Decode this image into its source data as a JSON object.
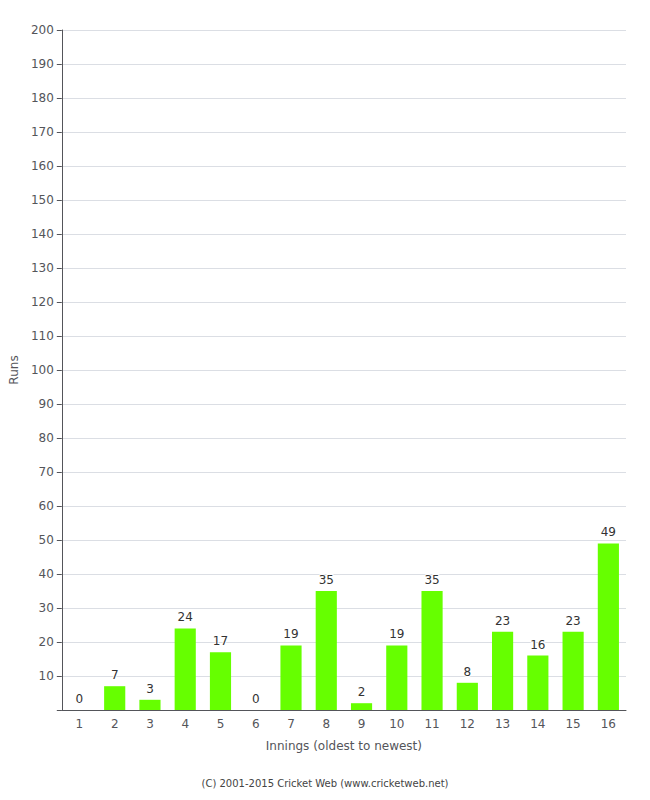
{
  "chart_data": {
    "type": "bar",
    "categories": [
      "1",
      "2",
      "3",
      "4",
      "5",
      "6",
      "7",
      "8",
      "9",
      "10",
      "11",
      "12",
      "13",
      "14",
      "15",
      "16"
    ],
    "values": [
      0,
      7,
      3,
      24,
      17,
      0,
      19,
      35,
      2,
      19,
      35,
      8,
      23,
      16,
      23,
      49
    ],
    "color": "#66ff00",
    "xlabel": "Innings (oldest to newest)",
    "ylabel": "Runs",
    "ylim": [
      0,
      200
    ],
    "yticks": [
      10,
      20,
      30,
      40,
      50,
      60,
      70,
      80,
      90,
      100,
      110,
      120,
      130,
      140,
      150,
      160,
      170,
      180,
      190,
      200
    ],
    "grid": true,
    "data_labels": true,
    "footer": "(C) 2001-2015 Cricket Web (www.cricketweb.net)"
  }
}
